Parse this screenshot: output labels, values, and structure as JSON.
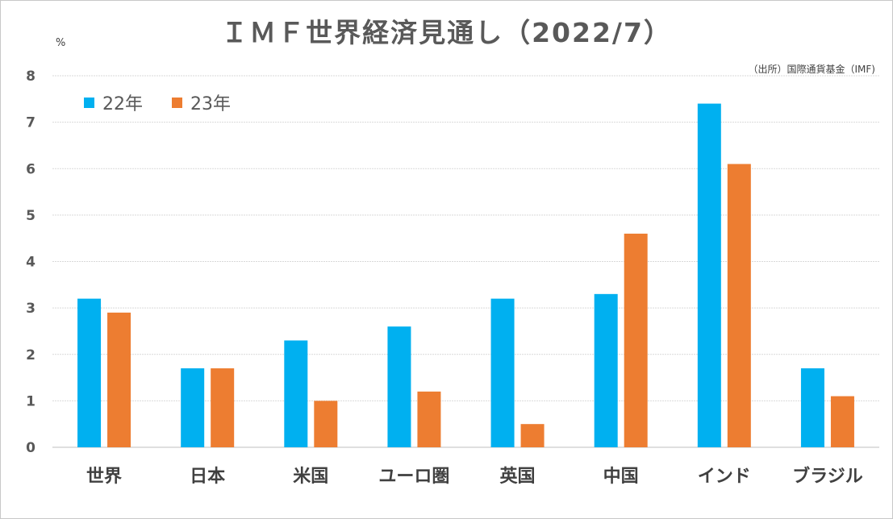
{
  "chart_data": {
    "type": "bar",
    "title": "ＩＭＦ世界経済見通し（2022/7）",
    "unit": "%",
    "source": "（出所）国際通貨基金（IMF)",
    "categories": [
      "世界",
      "日本",
      "米国",
      "ユーロ圏",
      "英国",
      "中国",
      "インド",
      "ブラジル"
    ],
    "series": [
      {
        "name": "22年",
        "color": "#00b0f0",
        "values": [
          3.2,
          1.7,
          2.3,
          2.6,
          3.2,
          3.3,
          7.4,
          1.7
        ]
      },
      {
        "name": "23年",
        "color": "#ed7d31",
        "values": [
          2.9,
          1.7,
          1.0,
          1.2,
          0.5,
          4.6,
          6.1,
          1.1
        ]
      }
    ],
    "ylim": [
      0,
      8
    ],
    "yticks": [
      "0",
      "1",
      "2",
      "3",
      "4",
      "5",
      "6",
      "7",
      "8"
    ],
    "grid": true,
    "legend_position": "top-left"
  }
}
